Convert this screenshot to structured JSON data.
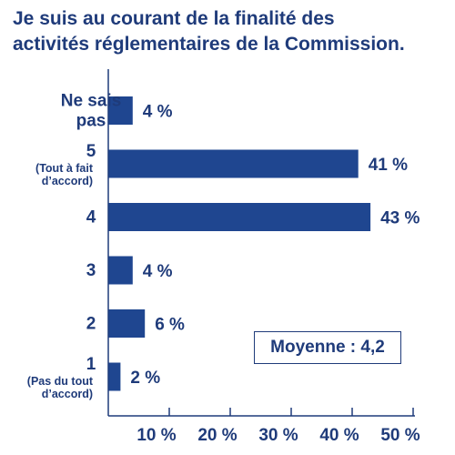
{
  "chart_data": {
    "type": "bar",
    "orientation": "horizontal",
    "title": [
      "Je suis au courant de la finalité des",
      "activités réglementaires de la Commission."
    ],
    "categories": [
      {
        "label": [
          "Ne sais",
          "pas"
        ],
        "value": 4,
        "value_label": "4 %"
      },
      {
        "label": [
          "5"
        ],
        "sublabel": [
          "(Tout à fait",
          "d’accord)"
        ],
        "value": 41,
        "value_label": "41 %"
      },
      {
        "label": [
          "4"
        ],
        "value": 43,
        "value_label": "43 %"
      },
      {
        "label": [
          "3"
        ],
        "value": 4,
        "value_label": "4 %"
      },
      {
        "label": [
          "2"
        ],
        "value": 6,
        "value_label": "6 %"
      },
      {
        "label": [
          "1"
        ],
        "sublabel": [
          "(Pas du tout",
          "d’accord)"
        ],
        "value": 2,
        "value_label": "2 %"
      }
    ],
    "x_ticks": [
      "10 %",
      "20 %",
      "30 %",
      "40 %",
      "50 %"
    ],
    "x_tick_values": [
      10,
      20,
      30,
      40,
      50
    ],
    "xlim": [
      0,
      50
    ],
    "grid": false,
    "colors": {
      "bar": "#1f4690",
      "text": "#1f3b7a",
      "axis": "#1f3b7a"
    },
    "annotation": "Moyenne : 4,2"
  }
}
